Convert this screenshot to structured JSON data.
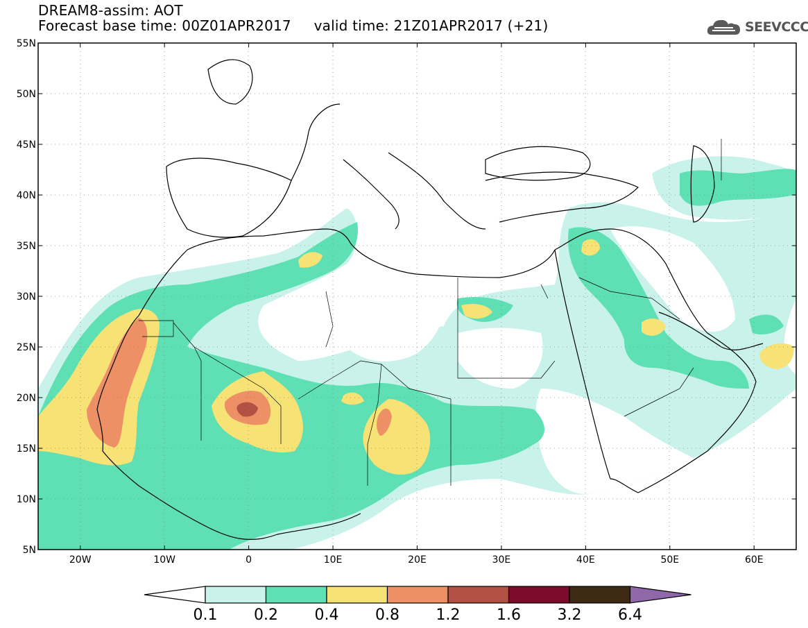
{
  "header": {
    "line1": "DREAM8-assim: AOT",
    "line2": "Forecast base time: 00Z01APR2017     valid time: 21Z01APR2017 (+21)"
  },
  "logo": {
    "text": "SEEVCCC",
    "icon": "cloud-icon"
  },
  "map": {
    "lon_ticks": [
      "20W",
      "10W",
      "0",
      "10E",
      "20E",
      "30E",
      "40E",
      "50E",
      "60E"
    ],
    "lat_ticks": [
      "55N",
      "50N",
      "45N",
      "40N",
      "35N",
      "30N",
      "25N",
      "20N",
      "15N",
      "10N",
      "5N"
    ],
    "lon_range": [
      -25,
      65
    ],
    "lat_range": [
      5,
      55
    ]
  },
  "colorbar": {
    "labels": [
      "0.1",
      "0.2",
      "0.4",
      "0.8",
      "1.2",
      "1.6",
      "3.2",
      "6.4"
    ],
    "colors": [
      "#ffffff",
      "#c8f2ea",
      "#5ee0b4",
      "#f6e275",
      "#ed9066",
      "#b35044",
      "#7c0a2a",
      "#3e2a14",
      "#8e68a8"
    ]
  },
  "aot_colors": {
    "l01": "#c8f2ea",
    "l02": "#5ee0b4",
    "l04": "#f6e275",
    "l08": "#ed9066",
    "l12": "#b35044"
  }
}
